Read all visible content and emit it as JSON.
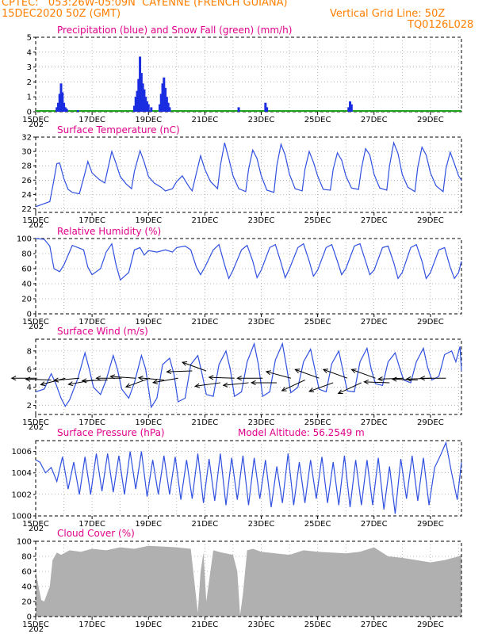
{
  "header": {
    "line1": "CPTEC:   053:26W-05:09N  CAYENNE (FRENCH GUIANA)",
    "line2_left": "15DEC2020 50Z (GMT)",
    "line2_right": "Vertical Grid Line: 50Z",
    "line3_right": "TQ0126L028"
  },
  "colors": {
    "header": "#ff7f00",
    "title": "#e0008a",
    "line": "#3050e0",
    "precip": "#1a2de0",
    "snow": "#1fa31f",
    "cloud": "#b0b0b0"
  },
  "x_axis": {
    "ticks": [
      "15DEC",
      "17DEC",
      "19DEC",
      "21DEC",
      "23DEC",
      "25DEC",
      "27DEC",
      "29DEC"
    ],
    "tick_days": [
      0,
      2,
      4,
      6,
      8,
      10,
      12,
      14
    ],
    "range_days": [
      0,
      15.1
    ],
    "year_fragment": "202"
  },
  "chart_data": [
    {
      "type": "bar",
      "title": "Precipitation (blue) and Snow Fall (green) (mm/h)",
      "ylim": [
        0,
        5
      ],
      "yticks": [
        "0",
        "1",
        "2",
        "3",
        "4",
        "5"
      ],
      "grid": true,
      "series": [
        {
          "name": "Precipitation (blue)",
          "points": [
            [
              0.75,
              0.3
            ],
            [
              0.8,
              0.6
            ],
            [
              0.85,
              1.2
            ],
            [
              0.9,
              1.9
            ],
            [
              0.95,
              1.3
            ],
            [
              1.0,
              0.6
            ],
            [
              1.05,
              0.3
            ],
            [
              1.1,
              0.2
            ],
            [
              1.5,
              0.1
            ],
            [
              3.5,
              0.4
            ],
            [
              3.55,
              1.0
            ],
            [
              3.6,
              1.4
            ],
            [
              3.65,
              2.2
            ],
            [
              3.7,
              3.7
            ],
            [
              3.75,
              2.6
            ],
            [
              3.8,
              1.9
            ],
            [
              3.85,
              1.5
            ],
            [
              3.9,
              1.0
            ],
            [
              3.95,
              0.7
            ],
            [
              4.0,
              0.5
            ],
            [
              4.1,
              0.3
            ],
            [
              4.4,
              0.5
            ],
            [
              4.45,
              1.2
            ],
            [
              4.5,
              1.9
            ],
            [
              4.55,
              2.3
            ],
            [
              4.6,
              1.6
            ],
            [
              4.65,
              1.0
            ],
            [
              4.7,
              0.6
            ],
            [
              4.75,
              0.3
            ],
            [
              7.2,
              0.3
            ],
            [
              8.15,
              0.6
            ],
            [
              8.2,
              0.3
            ],
            [
              11.1,
              0.3
            ],
            [
              11.15,
              0.7
            ],
            [
              11.2,
              0.5
            ]
          ]
        },
        {
          "name": "Snow Fall (green)",
          "values_constant": 0
        }
      ]
    },
    {
      "type": "line",
      "title": "Surface Temperature (nC)",
      "ylim": [
        21.5,
        32
      ],
      "yticks": [
        "22",
        "24",
        "26",
        "28",
        "30",
        "32"
      ],
      "grid": true,
      "x": [
        0,
        0.5,
        0.6,
        0.75,
        0.85,
        1.0,
        1.15,
        1.3,
        1.55,
        1.75,
        1.85,
        2.0,
        2.25,
        2.45,
        2.55,
        2.7,
        2.85,
        3.0,
        3.2,
        3.4,
        3.5,
        3.7,
        3.85,
        4.0,
        4.2,
        4.45,
        4.6,
        4.85,
        5.0,
        5.2,
        5.45,
        5.55,
        5.7,
        5.85,
        6.0,
        6.2,
        6.45,
        6.55,
        6.7,
        6.85,
        7.0,
        7.2,
        7.45,
        7.55,
        7.7,
        7.85,
        8.0,
        8.2,
        8.45,
        8.55,
        8.7,
        8.85,
        9.0,
        9.2,
        9.45,
        9.55,
        9.7,
        9.85,
        10.0,
        10.2,
        10.45,
        10.55,
        10.7,
        10.85,
        11.0,
        11.2,
        11.45,
        11.55,
        11.7,
        11.85,
        12.0,
        12.2,
        12.45,
        12.55,
        12.7,
        12.85,
        13.0,
        13.2,
        13.45,
        13.55,
        13.7,
        13.85,
        14.0,
        14.2,
        14.45,
        14.55,
        14.7,
        14.85,
        15.0,
        15.1
      ],
      "series": [
        {
          "values": [
            22.3,
            23.0,
            25.0,
            28.3,
            28.4,
            26.2,
            24.7,
            24.3,
            24.1,
            27.0,
            28.6,
            27.0,
            26.1,
            25.6,
            27.4,
            30.0,
            28.3,
            26.5,
            25.5,
            24.8,
            27.2,
            30.1,
            28.5,
            26.5,
            25.6,
            25.0,
            24.5,
            24.8,
            25.8,
            26.6,
            25.0,
            24.5,
            27.0,
            29.4,
            27.5,
            25.8,
            24.8,
            28.0,
            31.2,
            29.0,
            26.6,
            24.8,
            24.4,
            27.5,
            30.2,
            29.0,
            26.6,
            24.6,
            24.3,
            28.0,
            31.0,
            29.5,
            26.8,
            24.8,
            24.5,
            27.5,
            30.0,
            28.5,
            26.6,
            24.7,
            24.6,
            27.5,
            29.8,
            28.8,
            26.6,
            24.9,
            24.7,
            27.6,
            30.4,
            29.5,
            26.8,
            24.9,
            24.6,
            28.0,
            31.2,
            29.7,
            26.8,
            25.0,
            24.4,
            27.8,
            30.6,
            29.5,
            27.0,
            25.2,
            24.4,
            27.6,
            29.9,
            28.3,
            26.6,
            26.0
          ]
        }
      ]
    },
    {
      "type": "line",
      "title": "Relative Humidity (%)",
      "ylim": [
        0,
        100
      ],
      "yticks": [
        "0",
        "20",
        "40",
        "60",
        "80",
        "100"
      ],
      "grid": true,
      "x": [
        0,
        0.3,
        0.5,
        0.65,
        0.85,
        1.0,
        1.3,
        1.5,
        1.7,
        1.85,
        2.0,
        2.3,
        2.5,
        2.7,
        2.85,
        3.0,
        3.3,
        3.5,
        3.7,
        3.85,
        4.0,
        4.3,
        4.6,
        4.85,
        5.0,
        5.3,
        5.5,
        5.7,
        5.85,
        6.0,
        6.3,
        6.5,
        6.7,
        6.85,
        7.0,
        7.3,
        7.5,
        7.7,
        7.85,
        8.0,
        8.3,
        8.5,
        8.7,
        8.85,
        9.0,
        9.3,
        9.5,
        9.7,
        9.85,
        10.0,
        10.3,
        10.5,
        10.7,
        10.85,
        11.0,
        11.3,
        11.5,
        11.7,
        11.85,
        12.0,
        12.3,
        12.5,
        12.7,
        12.85,
        13.0,
        13.3,
        13.5,
        13.7,
        13.85,
        14.0,
        14.3,
        14.5,
        14.7,
        14.85,
        15.0,
        15.1
      ],
      "series": [
        {
          "values": [
            100,
            99,
            90,
            60,
            56,
            65,
            91,
            88,
            85,
            62,
            52,
            60,
            82,
            93,
            65,
            45,
            55,
            85,
            88,
            78,
            84,
            82,
            85,
            82,
            88,
            90,
            85,
            62,
            52,
            62,
            85,
            92,
            65,
            47,
            58,
            85,
            91,
            70,
            48,
            58,
            88,
            92,
            68,
            48,
            60,
            88,
            93,
            70,
            50,
            58,
            88,
            92,
            70,
            52,
            60,
            90,
            93,
            70,
            52,
            58,
            88,
            90,
            68,
            47,
            55,
            88,
            92,
            70,
            47,
            55,
            85,
            88,
            62,
            47,
            55,
            70
          ]
        }
      ]
    },
    {
      "type": "line",
      "title": "Surface Wind (m/s)",
      "ylim": [
        1,
        9.3
      ],
      "yticks": [
        "2",
        "4",
        "6",
        "8"
      ],
      "grid": true,
      "x": [
        0,
        0.3,
        0.55,
        0.7,
        0.9,
        1.05,
        1.2,
        1.5,
        1.75,
        1.9,
        2.05,
        2.3,
        2.5,
        2.75,
        2.9,
        3.05,
        3.3,
        3.5,
        3.75,
        3.9,
        4.1,
        4.3,
        4.5,
        4.75,
        4.9,
        5.05,
        5.3,
        5.5,
        5.75,
        5.9,
        6.05,
        6.3,
        6.5,
        6.75,
        6.9,
        7.05,
        7.3,
        7.5,
        7.75,
        7.9,
        8.05,
        8.3,
        8.5,
        8.75,
        8.9,
        9.05,
        9.3,
        9.5,
        9.75,
        9.9,
        10.05,
        10.3,
        10.5,
        10.75,
        10.9,
        11.05,
        11.3,
        11.5,
        11.75,
        11.9,
        12.05,
        12.3,
        12.5,
        12.75,
        12.9,
        13.05,
        13.3,
        13.5,
        13.75,
        13.9,
        14.05,
        14.3,
        14.5,
        14.75,
        14.9,
        15.05,
        15.1
      ],
      "series": [
        {
          "values": [
            3.5,
            3.8,
            5.5,
            4.5,
            2.8,
            1.9,
            2.6,
            5.0,
            7.8,
            6.0,
            4.0,
            3.2,
            4.8,
            7.5,
            6.0,
            3.8,
            2.8,
            4.5,
            7.5,
            6.0,
            1.8,
            2.8,
            6.5,
            7.2,
            5.5,
            2.4,
            2.8,
            6.5,
            7.5,
            5.5,
            3.2,
            3.0,
            6.5,
            8.0,
            6.0,
            3.0,
            3.5,
            6.8,
            8.8,
            6.5,
            3.0,
            3.5,
            7.0,
            8.8,
            6.2,
            3.4,
            4.0,
            6.8,
            8.2,
            6.0,
            3.8,
            3.5,
            6.6,
            8.0,
            5.8,
            3.6,
            3.5,
            6.8,
            8.3,
            6.0,
            4.4,
            4.2,
            6.8,
            7.8,
            6.2,
            4.8,
            4.5,
            6.8,
            8.3,
            6.2,
            4.8,
            5.2,
            7.6,
            8.0,
            6.8,
            8.5,
            5.8
          ]
        }
      ],
      "wind_vectors": [
        {
          "x": 0.05,
          "y": 5.0,
          "angle_deg": 180
        },
        {
          "x": 0.55,
          "y": 4.8,
          "angle_deg": 178
        },
        {
          "x": 1.05,
          "y": 5.0,
          "angle_deg": 195
        },
        {
          "x": 1.55,
          "y": 5.0,
          "angle_deg": 185
        },
        {
          "x": 2.05,
          "y": 4.8,
          "angle_deg": 190
        },
        {
          "x": 2.55,
          "y": 4.8,
          "angle_deg": 182
        },
        {
          "x": 3.05,
          "y": 5.0,
          "angle_deg": 180
        },
        {
          "x": 3.55,
          "y": 5.0,
          "angle_deg": 176
        },
        {
          "x": 4.05,
          "y": 5.0,
          "angle_deg": 200
        },
        {
          "x": 4.55,
          "y": 4.8,
          "angle_deg": 175
        },
        {
          "x": 5.05,
          "y": 5.0,
          "angle_deg": 190
        },
        {
          "x": 5.55,
          "y": 5.8,
          "angle_deg": 182
        },
        {
          "x": 6.05,
          "y": 5.8,
          "angle_deg": 160
        },
        {
          "x": 6.55,
          "y": 4.5,
          "angle_deg": 188
        },
        {
          "x": 7.05,
          "y": 5.0,
          "angle_deg": 178
        },
        {
          "x": 7.55,
          "y": 4.5,
          "angle_deg": 186
        },
        {
          "x": 8.05,
          "y": 5.0,
          "angle_deg": 180
        },
        {
          "x": 8.55,
          "y": 4.5,
          "angle_deg": 180
        },
        {
          "x": 9.05,
          "y": 5.0,
          "angle_deg": 165
        },
        {
          "x": 9.55,
          "y": 4.8,
          "angle_deg": 205
        },
        {
          "x": 10.05,
          "y": 5.0,
          "angle_deg": 160
        },
        {
          "x": 10.55,
          "y": 4.5,
          "angle_deg": 200
        },
        {
          "x": 11.05,
          "y": 5.0,
          "angle_deg": 160
        },
        {
          "x": 11.55,
          "y": 4.5,
          "angle_deg": 205
        },
        {
          "x": 12.05,
          "y": 5.0,
          "angle_deg": 160
        },
        {
          "x": 12.55,
          "y": 4.5,
          "angle_deg": 178
        },
        {
          "x": 13.05,
          "y": 5.0,
          "angle_deg": 182
        },
        {
          "x": 13.55,
          "y": 4.8,
          "angle_deg": 178
        },
        {
          "x": 14.05,
          "y": 5.0,
          "angle_deg": 182
        },
        {
          "x": 14.55,
          "y": 5.0,
          "angle_deg": 180
        }
      ]
    },
    {
      "type": "line",
      "title": "Surface Pressure (hPa)",
      "annotation": "Model Altitude: 56.2549  m",
      "ylim": [
        1000,
        1007
      ],
      "yticks": [
        "1000",
        "1002",
        "1004",
        "1006"
      ],
      "grid": true,
      "x": [
        0,
        0.15,
        0.35,
        0.55,
        0.75,
        0.95,
        1.15,
        1.35,
        1.55,
        1.75,
        1.95,
        2.15,
        2.35,
        2.55,
        2.75,
        2.95,
        3.15,
        3.35,
        3.55,
        3.75,
        3.95,
        4.15,
        4.35,
        4.55,
        4.75,
        4.95,
        5.15,
        5.35,
        5.55,
        5.75,
        5.95,
        6.15,
        6.35,
        6.55,
        6.75,
        6.95,
        7.15,
        7.35,
        7.55,
        7.75,
        7.95,
        8.15,
        8.35,
        8.55,
        8.75,
        8.95,
        9.15,
        9.35,
        9.55,
        9.75,
        9.95,
        10.15,
        10.35,
        10.55,
        10.75,
        10.95,
        11.15,
        11.35,
        11.55,
        11.75,
        11.95,
        12.15,
        12.35,
        12.55,
        12.75,
        12.95,
        13.15,
        13.35,
        13.55,
        13.75,
        13.95,
        14.15,
        14.35,
        14.55,
        14.75,
        14.95,
        15.1
      ],
      "series": [
        {
          "values": [
            1005.2,
            1005.0,
            1004.0,
            1004.5,
            1003.2,
            1005.5,
            1002.5,
            1005.0,
            1002.0,
            1005.5,
            1002.0,
            1005.8,
            1002.3,
            1005.8,
            1002.2,
            1005.6,
            1002.0,
            1006.0,
            1002.5,
            1006.0,
            1001.8,
            1005.2,
            1002.0,
            1005.6,
            1002.0,
            1005.5,
            1001.5,
            1005.2,
            1001.6,
            1005.8,
            1001.2,
            1005.3,
            1001.4,
            1005.8,
            1001.0,
            1005.4,
            1001.5,
            1005.6,
            1001.0,
            1005.4,
            1001.6,
            1005.2,
            1000.8,
            1004.6,
            1001.2,
            1005.8,
            1001.0,
            1005.0,
            1001.2,
            1005.2,
            1001.6,
            1005.5,
            1001.2,
            1005.0,
            1001.0,
            1005.6,
            1000.8,
            1005.2,
            1001.0,
            1005.2,
            1001.0,
            1005.4,
            1000.6,
            1004.6,
            1000.2,
            1005.3,
            1001.6,
            1005.6,
            1001.4,
            1005.4,
            1001.0,
            1004.5,
            1005.6,
            1006.8,
            1004.0,
            1001.5,
            1005.0
          ]
        }
      ]
    },
    {
      "type": "area",
      "title": "Cloud Cover (%)",
      "ylim": [
        0,
        100
      ],
      "yticks": [
        "0",
        "20",
        "40",
        "60",
        "80",
        "100"
      ],
      "grid": true,
      "x": [
        0,
        0.1,
        0.2,
        0.3,
        0.5,
        0.6,
        0.75,
        0.9,
        1.2,
        1.6,
        2.0,
        2.5,
        3.0,
        3.5,
        4.0,
        4.5,
        5.0,
        5.5,
        5.75,
        5.85,
        5.95,
        6.05,
        6.3,
        6.6,
        7.0,
        7.15,
        7.25,
        7.35,
        7.5,
        7.7,
        8.0,
        8.5,
        9.0,
        9.5,
        10.0,
        10.5,
        11.0,
        11.5,
        12.0,
        12.5,
        13.0,
        13.5,
        14.0,
        14.5,
        15.0,
        15.1
      ],
      "series": [
        {
          "values": [
            60,
            40,
            22,
            20,
            40,
            75,
            85,
            82,
            88,
            86,
            90,
            88,
            92,
            90,
            94,
            93,
            92,
            90,
            5,
            60,
            85,
            20,
            88,
            85,
            82,
            60,
            2,
            30,
            88,
            90,
            86,
            84,
            82,
            88,
            86,
            85,
            84,
            86,
            92,
            80,
            78,
            75,
            72,
            75,
            80,
            82
          ]
        }
      ]
    }
  ]
}
